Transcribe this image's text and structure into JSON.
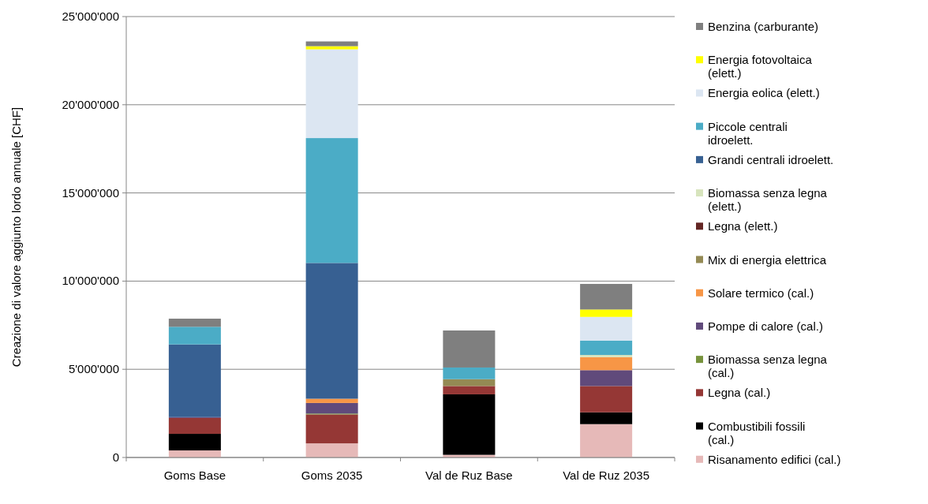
{
  "chart_data": {
    "type": "bar",
    "stacked": true,
    "ylabel": "Creazione di valore aggiunto lordo annuale [CHF]",
    "categories": [
      "Goms Base",
      "Goms 2035",
      "Val de Ruz Base",
      "Val de Ruz 2035"
    ],
    "series": [
      {
        "name": "Risanamento edifici (cal.)",
        "color": "#e6b9b8",
        "values": [
          400000,
          800000,
          150000,
          1890000
        ]
      },
      {
        "name": "Combustibili fossili (cal.)",
        "color": "#000000",
        "values": [
          940000,
          0,
          3430000,
          670000
        ]
      },
      {
        "name": "Legna (cal.)",
        "color": "#953735",
        "values": [
          900000,
          1640000,
          470000,
          1490000
        ]
      },
      {
        "name": "Biomassa senza legna (cal.)",
        "color": "#77933c",
        "values": [
          0,
          50000,
          0,
          0
        ]
      },
      {
        "name": "Pompe di calore (cal.)",
        "color": "#604a7b",
        "values": [
          50000,
          600000,
          0,
          900000
        ]
      },
      {
        "name": "Solare termico (cal.)",
        "color": "#f79646",
        "values": [
          0,
          240000,
          0,
          740000
        ]
      },
      {
        "name": "Mix di energia elettrica",
        "color": "#948a54",
        "values": [
          0,
          0,
          390000,
          0
        ]
      },
      {
        "name": "Legna (elett.)",
        "color": "#632523",
        "values": [
          0,
          0,
          0,
          0
        ]
      },
      {
        "name": "Biomassa senza legna (elett.)",
        "color": "#d7e4bd",
        "values": [
          0,
          0,
          0,
          120000
        ]
      },
      {
        "name": "Grandi centrali idroelett.",
        "color": "#376092",
        "values": [
          4120000,
          7700000,
          0,
          0
        ]
      },
      {
        "name": "Piccole centrali idroelett.",
        "color": "#4bacc6",
        "values": [
          1000000,
          7080000,
          660000,
          820000
        ]
      },
      {
        "name": "Energia eolica (elett.)",
        "color": "#dce6f2",
        "values": [
          0,
          5030000,
          0,
          1340000
        ]
      },
      {
        "name": "Energia fotovoltaica (elett.)",
        "color": "#ffff00",
        "values": [
          0,
          180000,
          0,
          420000
        ]
      },
      {
        "name": "Benzina (carburante)",
        "color": "#7f7f7f",
        "values": [
          460000,
          270000,
          2100000,
          1450000
        ]
      }
    ],
    "ylim": [
      0,
      25000000
    ],
    "yticks": [
      {
        "value": 0,
        "label": "0"
      },
      {
        "value": 5000000,
        "label": "5'000'000"
      },
      {
        "value": 10000000,
        "label": "10'000'000"
      },
      {
        "value": 15000000,
        "label": "15'000'000"
      },
      {
        "value": 20000000,
        "label": "20'000'000"
      },
      {
        "value": 25000000,
        "label": "25'000'000"
      }
    ],
    "grid": "y",
    "legend": "right"
  }
}
